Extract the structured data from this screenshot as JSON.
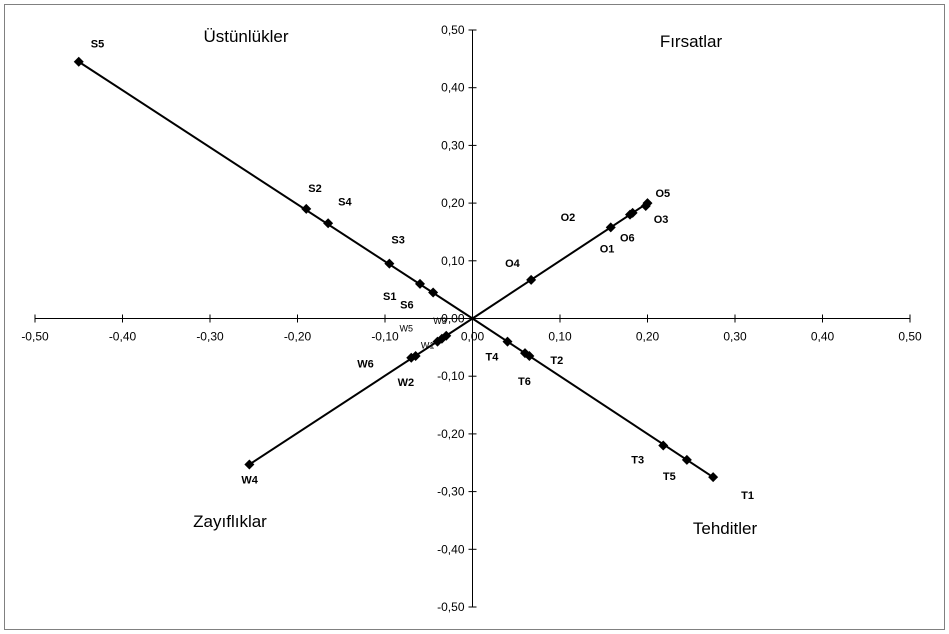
{
  "chart_data": {
    "type": "scatter",
    "xlim": [
      -0.5,
      0.5
    ],
    "ylim": [
      -0.5,
      0.5
    ],
    "x_ticks": [
      "-0,50",
      "-0,40",
      "-0,30",
      "-0,20",
      "-0,10",
      "0,00",
      "0,10",
      "0,20",
      "0,30",
      "0,40",
      "0,50"
    ],
    "y_ticks": [
      "0,50",
      "0,40",
      "0,30",
      "0,20",
      "0,10",
      "0,00",
      "-0,10",
      "-0,20",
      "-0,30",
      "-0,40",
      "-0,50"
    ],
    "grid": false,
    "legend": "none",
    "quadrant_labels": {
      "strengths": "Üstünlükler",
      "opportunities": "Fırsatlar",
      "weaknesses": "Zayıflıklar",
      "threats": "Tehditler"
    },
    "points": [
      {
        "label": "S5",
        "x": -0.45,
        "y": 0.445
      },
      {
        "label": "S2",
        "x": -0.19,
        "y": 0.19
      },
      {
        "label": "S4",
        "x": -0.165,
        "y": 0.165
      },
      {
        "label": "S3",
        "x": -0.095,
        "y": 0.095
      },
      {
        "label": "S1",
        "x": -0.06,
        "y": 0.06
      },
      {
        "label": "S6",
        "x": -0.045,
        "y": 0.045
      },
      {
        "label": "O5",
        "x": 0.2,
        "y": 0.2
      },
      {
        "label": "O3",
        "x": 0.198,
        "y": 0.195
      },
      {
        "label": "O2",
        "x": 0.183,
        "y": 0.183
      },
      {
        "label": "O6",
        "x": 0.18,
        "y": 0.18
      },
      {
        "label": "O1",
        "x": 0.158,
        "y": 0.158
      },
      {
        "label": "O4",
        "x": 0.067,
        "y": 0.067
      },
      {
        "label": "W5",
        "x": -0.04,
        "y": -0.04
      },
      {
        "label": "W3",
        "x": -0.03,
        "y": -0.03
      },
      {
        "label": "W1",
        "x": -0.035,
        "y": -0.035
      },
      {
        "label": "W6",
        "x": -0.07,
        "y": -0.068
      },
      {
        "label": "W2",
        "x": -0.065,
        "y": -0.065
      },
      {
        "label": "W4",
        "x": -0.255,
        "y": -0.253
      },
      {
        "label": "T4",
        "x": 0.04,
        "y": -0.04
      },
      {
        "label": "T6",
        "x": 0.06,
        "y": -0.06
      },
      {
        "label": "T2",
        "x": 0.065,
        "y": -0.065
      },
      {
        "label": "T3",
        "x": 0.218,
        "y": -0.22
      },
      {
        "label": "T5",
        "x": 0.245,
        "y": -0.245
      },
      {
        "label": "T1",
        "x": 0.275,
        "y": -0.275
      }
    ],
    "lines": [
      {
        "name": "S",
        "from": [
          0,
          0
        ],
        "to": [
          -0.45,
          0.445
        ]
      },
      {
        "name": "O",
        "from": [
          0,
          0
        ],
        "to": [
          0.2,
          0.2
        ]
      },
      {
        "name": "W",
        "from": [
          0,
          0
        ],
        "to": [
          -0.255,
          -0.253
        ]
      },
      {
        "name": "T",
        "from": [
          0,
          0
        ],
        "to": [
          0.275,
          -0.275
        ]
      }
    ]
  }
}
